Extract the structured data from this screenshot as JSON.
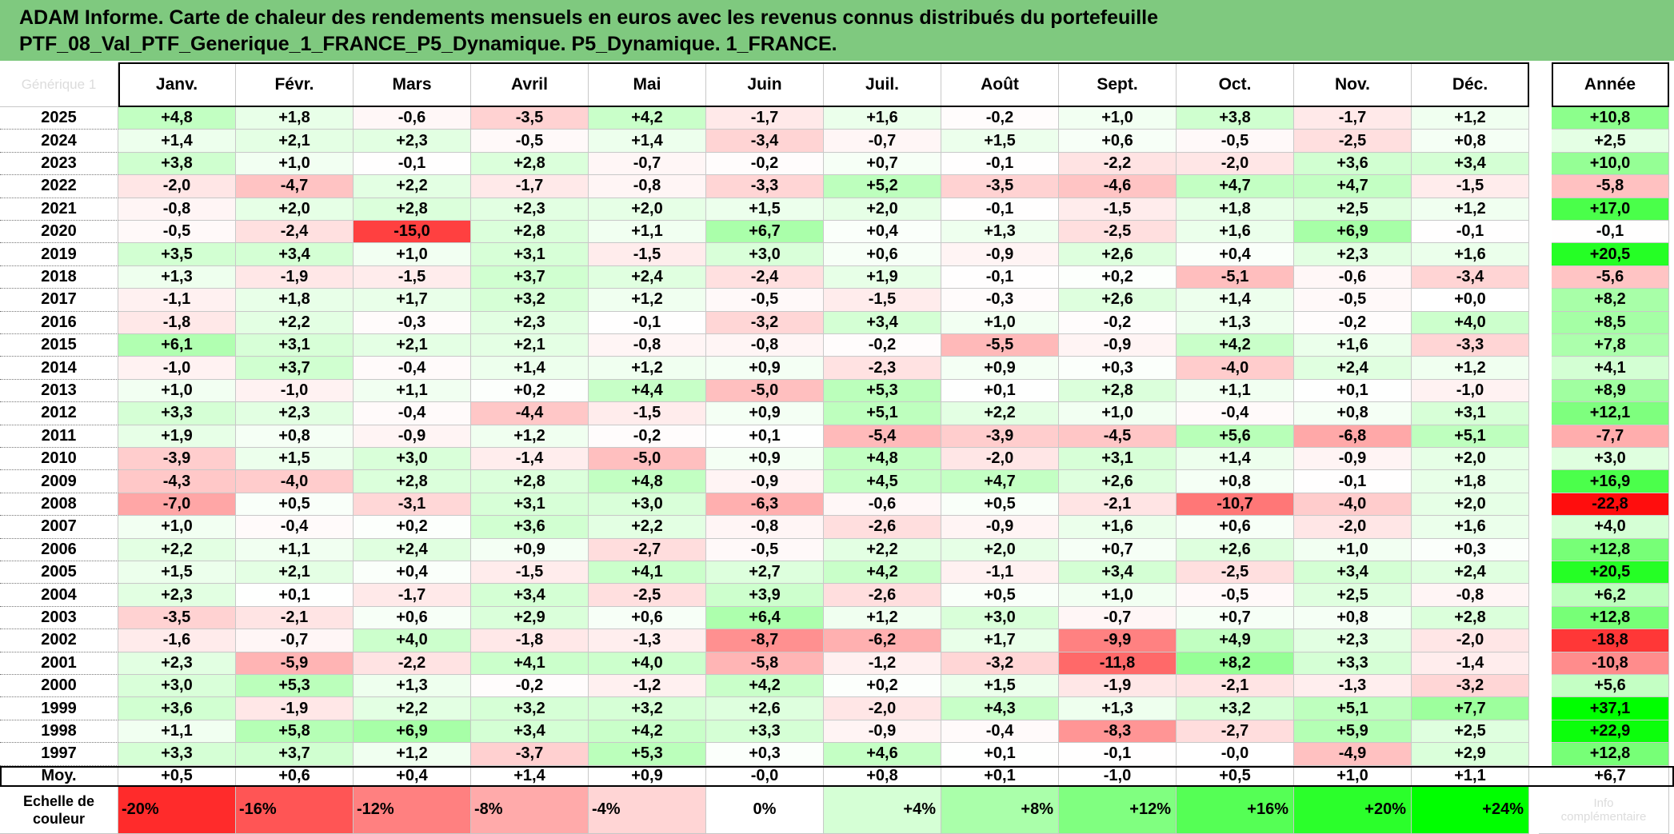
{
  "title": {
    "line1": "ADAM Informe. Carte de chaleur des rendements mensuels en euros avec les revenus connus distribués du portefeuille",
    "line2": "PTF_08_Val_PTF_Generique_1_FRANCE_P5_Dynamique. P5_Dynamique. 1_FRANCE."
  },
  "corner_label": "Générique 1",
  "chart_data": {
    "type": "heatmap",
    "title": "ADAM Informe. Carte de chaleur des rendements mensuels en euros avec les revenus connus distribués du portefeuille PTF_08_Val_PTF_Generique_1_FRANCE_P5_Dynamique. P5_Dynamique. 1_FRANCE.",
    "columns": [
      "Janv.",
      "Févr.",
      "Mars",
      "Avril",
      "Mai",
      "Juin",
      "Juil.",
      "Août",
      "Sept.",
      "Oct.",
      "Nov.",
      "Déc."
    ],
    "year_column": "Année",
    "rows": [
      {
        "year": "2025",
        "months": [
          "+4,8",
          "+1,8",
          "-0,6",
          "-3,5",
          "+4,2",
          "-1,7",
          "+1,6",
          "-0,2",
          "+1,0",
          "+3,8",
          "-1,7",
          "+1,2"
        ],
        "annual": "+10,8"
      },
      {
        "year": "2024",
        "months": [
          "+1,4",
          "+2,1",
          "+2,3",
          "-0,5",
          "+1,4",
          "-3,4",
          "-0,7",
          "+1,5",
          "+0,6",
          "-0,5",
          "-2,5",
          "+0,8"
        ],
        "annual": "+2,5"
      },
      {
        "year": "2023",
        "months": [
          "+3,8",
          "+1,0",
          "-0,1",
          "+2,8",
          "-0,7",
          "-0,2",
          "+0,7",
          "-0,1",
          "-2,2",
          "-2,0",
          "+3,6",
          "+3,4"
        ],
        "annual": "+10,0"
      },
      {
        "year": "2022",
        "months": [
          "-2,0",
          "-4,7",
          "+2,2",
          "-1,7",
          "-0,8",
          "-3,3",
          "+5,2",
          "-3,5",
          "-4,6",
          "+4,7",
          "+4,7",
          "-1,5"
        ],
        "annual": "-5,8"
      },
      {
        "year": "2021",
        "months": [
          "-0,8",
          "+2,0",
          "+2,8",
          "+2,3",
          "+2,0",
          "+1,5",
          "+2,0",
          "-0,1",
          "-1,5",
          "+1,8",
          "+2,5",
          "+1,2"
        ],
        "annual": "+17,0"
      },
      {
        "year": "2020",
        "months": [
          "-0,5",
          "-2,4",
          "-15,0",
          "+2,8",
          "+1,1",
          "+6,7",
          "+0,4",
          "+1,3",
          "-2,5",
          "+1,6",
          "+6,9",
          "-0,1"
        ],
        "annual": "-0,1"
      },
      {
        "year": "2019",
        "months": [
          "+3,5",
          "+3,4",
          "+1,0",
          "+3,1",
          "-1,5",
          "+3,0",
          "+0,6",
          "-0,9",
          "+2,6",
          "+0,4",
          "+2,3",
          "+1,6"
        ],
        "annual": "+20,5"
      },
      {
        "year": "2018",
        "months": [
          "+1,3",
          "-1,9",
          "-1,5",
          "+3,7",
          "+2,4",
          "-2,4",
          "+1,9",
          "-0,1",
          "+0,2",
          "-5,1",
          "-0,6",
          "-3,4"
        ],
        "annual": "-5,6"
      },
      {
        "year": "2017",
        "months": [
          "-1,1",
          "+1,8",
          "+1,7",
          "+3,2",
          "+1,2",
          "-0,5",
          "-1,5",
          "-0,3",
          "+2,6",
          "+1,4",
          "-0,5",
          "+0,0"
        ],
        "annual": "+8,2"
      },
      {
        "year": "2016",
        "months": [
          "-1,8",
          "+2,2",
          "-0,3",
          "+2,3",
          "-0,1",
          "-3,2",
          "+3,4",
          "+1,0",
          "-0,2",
          "+1,3",
          "-0,2",
          "+4,0"
        ],
        "annual": "+8,5"
      },
      {
        "year": "2015",
        "months": [
          "+6,1",
          "+3,1",
          "+2,1",
          "+2,1",
          "-0,8",
          "-0,8",
          "-0,2",
          "-5,5",
          "-0,9",
          "+4,2",
          "+1,6",
          "-3,3"
        ],
        "annual": "+7,8"
      },
      {
        "year": "2014",
        "months": [
          "-1,0",
          "+3,7",
          "-0,4",
          "+1,4",
          "+1,2",
          "+0,9",
          "-2,3",
          "+0,9",
          "+0,3",
          "-4,0",
          "+2,4",
          "+1,2"
        ],
        "annual": "+4,1"
      },
      {
        "year": "2013",
        "months": [
          "+1,0",
          "-1,0",
          "+1,1",
          "+0,2",
          "+4,4",
          "-5,0",
          "+5,3",
          "+0,1",
          "+2,8",
          "+1,1",
          "+0,1",
          "-1,0"
        ],
        "annual": "+8,9"
      },
      {
        "year": "2012",
        "months": [
          "+3,3",
          "+2,3",
          "-0,4",
          "-4,4",
          "-1,5",
          "+0,9",
          "+5,1",
          "+2,2",
          "+1,0",
          "-0,4",
          "+0,8",
          "+3,1"
        ],
        "annual": "+12,1"
      },
      {
        "year": "2011",
        "months": [
          "+1,9",
          "+0,8",
          "-0,9",
          "+1,2",
          "-0,2",
          "+0,1",
          "-5,4",
          "-3,9",
          "-4,5",
          "+5,6",
          "-6,8",
          "+5,1"
        ],
        "annual": "-7,7"
      },
      {
        "year": "2010",
        "months": [
          "-3,9",
          "+1,5",
          "+3,0",
          "-1,4",
          "-5,0",
          "+0,9",
          "+4,8",
          "-2,0",
          "+3,1",
          "+1,4",
          "-0,9",
          "+2,0"
        ],
        "annual": "+3,0"
      },
      {
        "year": "2009",
        "months": [
          "-4,3",
          "-4,0",
          "+2,8",
          "+2,8",
          "+4,8",
          "-0,9",
          "+4,5",
          "+4,7",
          "+2,6",
          "+0,8",
          "-0,1",
          "+1,8"
        ],
        "annual": "+16,9"
      },
      {
        "year": "2008",
        "months": [
          "-7,0",
          "+0,5",
          "-3,1",
          "+3,1",
          "+3,0",
          "-6,3",
          "-0,6",
          "+0,5",
          "-2,1",
          "-10,7",
          "-4,0",
          "+2,0"
        ],
        "annual": "-22,8"
      },
      {
        "year": "2007",
        "months": [
          "+1,0",
          "-0,4",
          "+0,2",
          "+3,6",
          "+2,2",
          "-0,8",
          "-2,6",
          "-0,9",
          "+1,6",
          "+0,6",
          "-2,0",
          "+1,6"
        ],
        "annual": "+4,0"
      },
      {
        "year": "2006",
        "months": [
          "+2,2",
          "+1,1",
          "+2,4",
          "+0,9",
          "-2,7",
          "-0,5",
          "+2,2",
          "+2,0",
          "+0,7",
          "+2,6",
          "+1,0",
          "+0,3"
        ],
        "annual": "+12,8"
      },
      {
        "year": "2005",
        "months": [
          "+1,5",
          "+2,1",
          "+0,4",
          "-1,5",
          "+4,1",
          "+2,7",
          "+4,2",
          "-1,1",
          "+3,4",
          "-2,5",
          "+3,4",
          "+2,4"
        ],
        "annual": "+20,5"
      },
      {
        "year": "2004",
        "months": [
          "+2,3",
          "+0,1",
          "-1,7",
          "+3,4",
          "-2,5",
          "+3,9",
          "-2,6",
          "+0,5",
          "+1,0",
          "-0,5",
          "+2,5",
          "-0,8"
        ],
        "annual": "+6,2"
      },
      {
        "year": "2003",
        "months": [
          "-3,5",
          "-2,1",
          "+0,6",
          "+2,9",
          "+0,6",
          "+6,4",
          "+1,2",
          "+3,0",
          "-0,7",
          "+0,7",
          "+0,8",
          "+2,8"
        ],
        "annual": "+12,8"
      },
      {
        "year": "2002",
        "months": [
          "-1,6",
          "-0,7",
          "+4,0",
          "-1,8",
          "-1,3",
          "-8,7",
          "-6,2",
          "+1,7",
          "-9,9",
          "+4,9",
          "+2,3",
          "-2,0"
        ],
        "annual": "-18,8"
      },
      {
        "year": "2001",
        "months": [
          "+2,3",
          "-5,9",
          "-2,2",
          "+4,1",
          "+4,0",
          "-5,8",
          "-1,2",
          "-3,2",
          "-11,8",
          "+8,2",
          "+3,3",
          "-1,4"
        ],
        "annual": "-10,8"
      },
      {
        "year": "2000",
        "months": [
          "+3,0",
          "+5,3",
          "+1,3",
          "-0,2",
          "-1,2",
          "+4,2",
          "+0,2",
          "+1,5",
          "-1,9",
          "-2,1",
          "-1,3",
          "-3,2"
        ],
        "annual": "+5,6"
      },
      {
        "year": "1999",
        "months": [
          "+3,6",
          "-1,9",
          "+2,2",
          "+3,2",
          "+3,2",
          "+2,6",
          "-2,0",
          "+4,3",
          "+1,3",
          "+3,2",
          "+5,1",
          "+7,7"
        ],
        "annual": "+37,1"
      },
      {
        "year": "1998",
        "months": [
          "+1,1",
          "+5,8",
          "+6,9",
          "+3,4",
          "+4,2",
          "+3,3",
          "-0,9",
          "-0,4",
          "-8,3",
          "-2,7",
          "+5,9",
          "+2,5"
        ],
        "annual": "+22,9"
      },
      {
        "year": "1997",
        "months": [
          "+3,3",
          "+3,7",
          "+1,2",
          "-3,7",
          "+5,3",
          "+0,3",
          "+4,6",
          "+0,1",
          "-0,1",
          "-0,0",
          "-4,9",
          "+2,9"
        ],
        "annual": "+12,8"
      }
    ],
    "average": {
      "label": "Moy.",
      "months": [
        "+0,5",
        "+0,6",
        "+0,4",
        "+1,4",
        "+0,9",
        "-0,0",
        "+0,8",
        "+0,1",
        "-1,0",
        "+0,5",
        "+1,0",
        "+1,1"
      ],
      "annual": "+6,7"
    },
    "color_scale": {
      "label_line1": "Echelle de",
      "label_line2": "couleur",
      "steps": [
        "-20%",
        "-16%",
        "-12%",
        "-8%",
        "-4%",
        "0%",
        "+4%",
        "+8%",
        "+12%",
        "+16%",
        "+20%",
        "+24%"
      ],
      "values": [
        -20,
        -16,
        -12,
        -8,
        -4,
        0,
        4,
        8,
        12,
        16,
        20,
        24
      ],
      "faint_line1": "Info",
      "faint_line2": "complémentaire",
      "negative_color": "#ff0000",
      "zero_color": "#ffffff",
      "positive_color": "#00ff00"
    }
  }
}
